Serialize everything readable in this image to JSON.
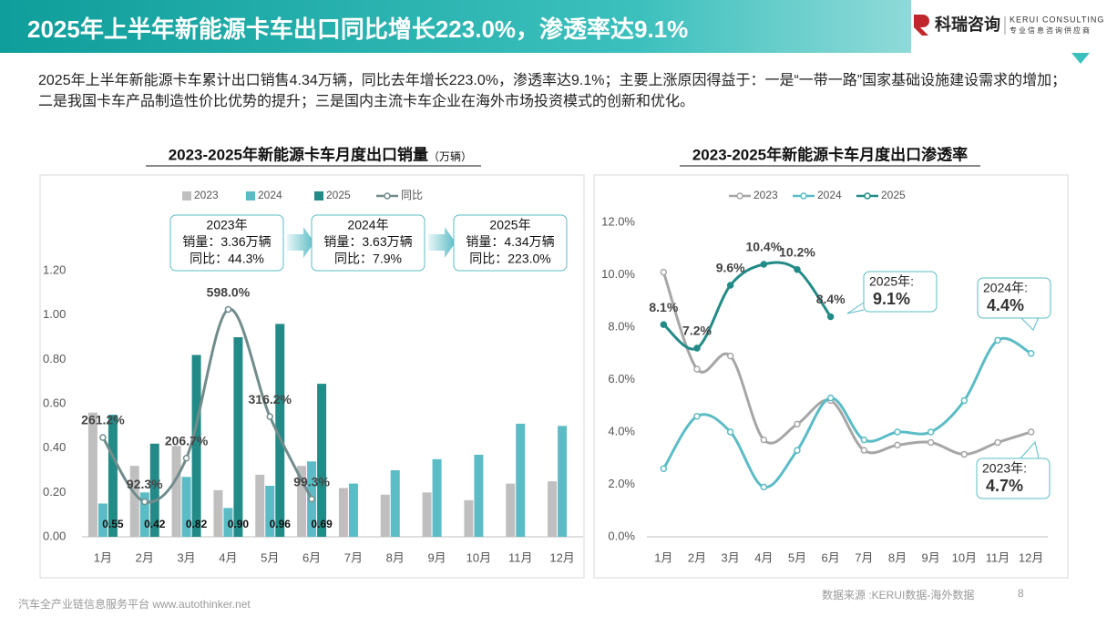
{
  "header": {
    "title": "2025年上半年新能源卡车出口同比增长223.0%，渗透率达9.1%",
    "logo_name": "科瑞咨询",
    "logo_en": "KERUI CONSULTING",
    "logo_tagline": "专业信息咨询供应商"
  },
  "summary": "2025年上半年新能源卡车累计出口销售4.34万辆，同比去年增长223.0%，渗透率达9.1%；主要上涨原因得益于：一是“一带一路”国家基础设施建设需求的增加；二是我国卡车产品制造性价比优势的提升；三是国内主流卡车企业在海外市场投资模式的创新和优化。",
  "chart_data": [
    {
      "type": "bar",
      "title": "2023-2025年新能源卡车月度出口销量",
      "title_unit": "（万辆）",
      "categories": [
        "1月",
        "2月",
        "3月",
        "4月",
        "5月",
        "6月",
        "7月",
        "8月",
        "9月",
        "10月",
        "11月",
        "12月"
      ],
      "series": [
        {
          "name": "2023",
          "color": "#bfbfbf",
          "values": [
            0.56,
            0.32,
            0.41,
            0.21,
            0.28,
            0.32,
            0.22,
            0.19,
            0.2,
            0.165,
            0.24,
            0.25
          ]
        },
        {
          "name": "2024",
          "color": "#5bbcc5",
          "values": [
            0.15,
            0.2,
            0.27,
            0.13,
            0.23,
            0.34,
            0.24,
            0.3,
            0.35,
            0.37,
            0.51,
            0.5
          ]
        },
        {
          "name": "2025",
          "color": "#238b87",
          "values": [
            0.55,
            0.42,
            0.82,
            0.9,
            0.96,
            0.69,
            null,
            null,
            null,
            null,
            null,
            null
          ],
          "value_labels": [
            "0.55",
            "0.42",
            "0.82",
            "0.90",
            "0.96",
            "0.69",
            null,
            null,
            null,
            null,
            null,
            null
          ]
        },
        {
          "name": "同比",
          "type": "line",
          "axis": "y2",
          "color": "#728c8c",
          "values": [
            261.2,
            92.3,
            206.7,
            598.0,
            316.2,
            99.3,
            null,
            null,
            null,
            null,
            null,
            null
          ],
          "value_labels": [
            "261.2%",
            "92.3%",
            "206.7%",
            "598.0%",
            "316.2%",
            "99.3%",
            null,
            null,
            null,
            null,
            null,
            null
          ]
        }
      ],
      "ylim": [
        0,
        1.2
      ],
      "yticks": [
        {
          "value": 0,
          "label": "0.00"
        },
        {
          "value": 0.2,
          "label": "0.20"
        },
        {
          "value": 0.4,
          "label": "0.40"
        },
        {
          "value": 0.6,
          "label": "0.60"
        },
        {
          "value": 0.8,
          "label": "0.80"
        },
        {
          "value": 1.0,
          "label": "1.00"
        },
        {
          "value": 1.2,
          "label": "1.20"
        }
      ],
      "y2lim": [
        0,
        700
      ],
      "annotations": [
        {
          "lines": [
            "2023年",
            "销量：3.36万辆",
            "同比：44.3%"
          ]
        },
        {
          "lines": [
            "2024年",
            "销量：3.63万辆",
            "同比：7.9%"
          ]
        },
        {
          "lines": [
            "2025年",
            "销量：4.34万辆",
            "同比：223.0%"
          ]
        }
      ]
    },
    {
      "type": "line",
      "title": "2023-2025年新能源卡车月度出口渗透率",
      "categories": [
        "1月",
        "2月",
        "3月",
        "4月",
        "5月",
        "6月",
        "7月",
        "8月",
        "9月",
        "10月",
        "11月",
        "12月"
      ],
      "series": [
        {
          "name": "2023",
          "color": "#a6a6a6",
          "values": [
            10.1,
            6.4,
            6.9,
            3.7,
            4.3,
            5.2,
            3.3,
            3.5,
            3.6,
            3.15,
            3.6,
            4.0
          ]
        },
        {
          "name": "2024",
          "color": "#5bbcc5",
          "values": [
            2.6,
            4.6,
            4.0,
            1.9,
            3.3,
            5.3,
            3.7,
            4.0,
            4.0,
            5.2,
            7.5,
            7.0
          ]
        },
        {
          "name": "2025",
          "color": "#238b87",
          "values": [
            8.1,
            7.2,
            9.6,
            10.4,
            10.2,
            8.4,
            null,
            null,
            null,
            null,
            null,
            null
          ],
          "value_labels": [
            "8.1%",
            "7.2%",
            "9.6%",
            "10.4%",
            "10.2%",
            "8.4%",
            null,
            null,
            null,
            null,
            null,
            null
          ]
        }
      ],
      "ylim": [
        0,
        12
      ],
      "yticks": [
        {
          "value": 0,
          "label": "0.0%"
        },
        {
          "value": 2,
          "label": "2.0%"
        },
        {
          "value": 4,
          "label": "4.0%"
        },
        {
          "value": 6,
          "label": "6.0%"
        },
        {
          "value": 8,
          "label": "8.0%"
        },
        {
          "value": 10,
          "label": "10.0%"
        },
        {
          "value": 12,
          "label": "12.0%"
        }
      ],
      "annotations": [
        {
          "label": "2025年:",
          "value": "9.1%"
        },
        {
          "label": "2024年:",
          "value": "4.4%"
        },
        {
          "label": "2023年:",
          "value": "4.7%"
        }
      ]
    }
  ],
  "footer": {
    "platform": "汽车全产业链信息服务平台 www.autothinker.net",
    "source": "数据来源 :KERUI数据-海外数据",
    "page": "8"
  }
}
